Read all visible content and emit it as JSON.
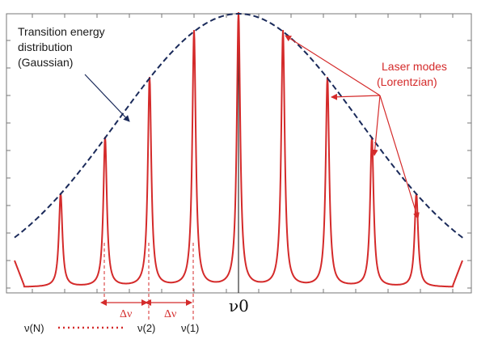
{
  "labels": {
    "gaussian_line1": "Transition energy",
    "gaussian_line2": "distribution",
    "gaussian_line3": "(Gaussian)",
    "laser_line1": "Laser modes",
    "laser_line2": "(Lorentzian)",
    "center_freq": "ν0",
    "delta_nu_1": "Δν",
    "delta_nu_2": "Δν",
    "mode_n": "ν(N)",
    "mode_2": "ν(2)",
    "mode_1": "ν(1)"
  },
  "colors": {
    "gaussian": "#1a2a5a",
    "modes": "#d42a2a",
    "axis": "#555555",
    "text_dark": "#1a1a1a"
  }
}
